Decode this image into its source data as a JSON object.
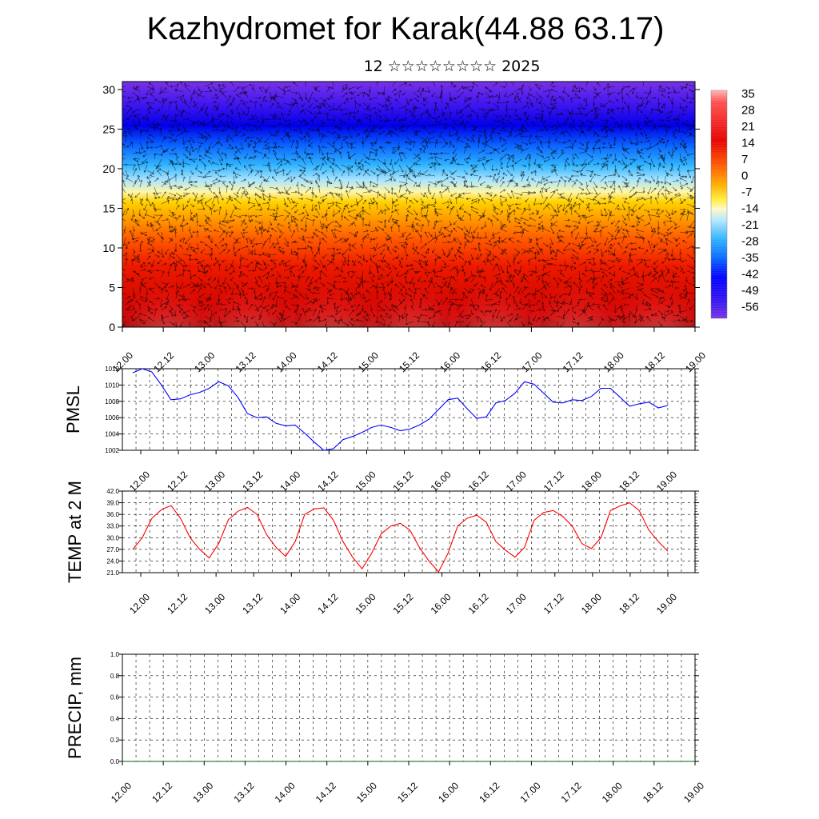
{
  "title": "Kazhydromet for Karak(44.88 63.17)",
  "subtitle": "12 ☆☆☆☆☆☆☆☆ 2025",
  "time_labels": [
    "12.00",
    "12.12",
    "13.00",
    "13.12",
    "14.00",
    "14.12",
    "15.00",
    "15.12",
    "16.00",
    "16.12",
    "17.00",
    "17.12",
    "18.00",
    "18.12",
    "19.00"
  ],
  "colors": {
    "pmsl_line": "#0000ff",
    "temp_line": "#ff0000",
    "precip_line": "#006400",
    "grid": "#000000"
  },
  "chart_data": [
    {
      "type": "heatmap",
      "name": "cross-section",
      "y_ticks": [
        0,
        5,
        10,
        15,
        20,
        25,
        30
      ],
      "ylim": [
        0,
        31
      ],
      "colorbar_labels": [
        "35",
        "28",
        "21",
        "14",
        "7",
        "0",
        "-7",
        "-14",
        "-21",
        "-28",
        "-35",
        "-42",
        "-49",
        "-56"
      ],
      "grid": false
    },
    {
      "type": "line",
      "ylabel": "PMSL",
      "y_ticks": [
        "1012",
        "1010",
        "1008",
        "1006",
        "1004",
        "1002"
      ],
      "ylim": [
        1002,
        1012
      ],
      "grid": true,
      "values": [
        1011.5,
        1012.0,
        1011.6,
        1010.0,
        1008.2,
        1008.3,
        1008.8,
        1009.1,
        1009.6,
        1010.4,
        1009.9,
        1008.5,
        1006.5,
        1006.0,
        1006.1,
        1005.3,
        1005.0,
        1005.1,
        1004.1,
        1003.0,
        1002.0,
        1002.2,
        1003.3,
        1003.7,
        1004.2,
        1004.8,
        1005.1,
        1004.8,
        1004.4,
        1004.6,
        1005.1,
        1005.8,
        1007.0,
        1008.2,
        1008.4,
        1007.1,
        1005.9,
        1006.1,
        1007.8,
        1008.1,
        1009.0,
        1010.4,
        1010.1,
        1009.0,
        1007.9,
        1007.8,
        1008.2,
        1008.1,
        1008.6,
        1009.6,
        1009.6,
        1008.5,
        1007.4,
        1007.7,
        1007.9,
        1007.2,
        1007.5
      ]
    },
    {
      "type": "line",
      "ylabel": "TEMP at 2 M",
      "y_ticks": [
        "42.0",
        "39.0",
        "36.0",
        "33.0",
        "30.0",
        "27.0",
        "24.0",
        "21.0"
      ],
      "ylim": [
        21,
        42
      ],
      "grid": true,
      "values": [
        27.0,
        30.0,
        35.0,
        37.2,
        38.3,
        35.0,
        30.0,
        27.0,
        24.8,
        28.5,
        34.6,
        36.8,
        37.8,
        36.0,
        30.8,
        27.5,
        25.2,
        29.0,
        36.0,
        37.4,
        37.7,
        34.5,
        29.0,
        25.0,
        22.0,
        26.0,
        31.0,
        33.0,
        33.7,
        32.0,
        27.5,
        24.0,
        21.2,
        26.0,
        33.0,
        35.0,
        35.8,
        34.0,
        29.0,
        26.8,
        25.0,
        27.5,
        34.5,
        36.5,
        37.0,
        35.5,
        33.0,
        28.5,
        27.2,
        30.0,
        37.0,
        38.2,
        39.0,
        37.0,
        32.0,
        29.0,
        26.5
      ]
    },
    {
      "type": "line",
      "ylabel": "PRECIP, mm",
      "y_ticks": [
        "1.0",
        "0.8",
        "0.6",
        "0.4",
        "0.2",
        "0.0"
      ],
      "ylim": [
        0,
        1
      ],
      "grid": true,
      "values": [
        0,
        0,
        0,
        0,
        0,
        0,
        0,
        0,
        0,
        0,
        0,
        0,
        0,
        0,
        0,
        0,
        0,
        0,
        0,
        0,
        0,
        0,
        0,
        0,
        0,
        0,
        0,
        0,
        0,
        0,
        0,
        0,
        0,
        0,
        0,
        0,
        0,
        0,
        0,
        0,
        0,
        0,
        0,
        0,
        0,
        0,
        0,
        0,
        0,
        0,
        0,
        0,
        0,
        0,
        0,
        0,
        0
      ]
    }
  ]
}
